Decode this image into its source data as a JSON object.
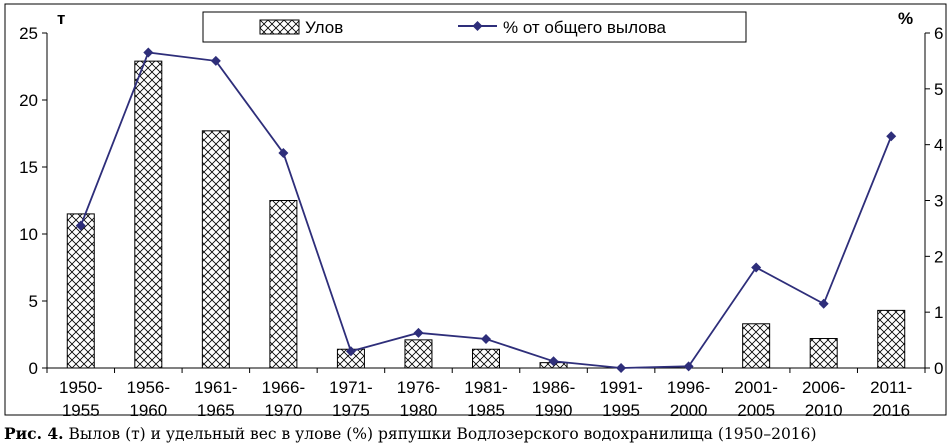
{
  "chart_data": {
    "type": "bar+line",
    "categories": [
      "1950-1955",
      "1956-1960",
      "1961-1965",
      "1966-1970",
      "1971-1975",
      "1976-1980",
      "1981-1985",
      "1986-1990",
      "1991-1995",
      "1996-2000",
      "2001-2005",
      "2006-2010",
      "2011-2016"
    ],
    "category_lines": [
      [
        "1950-",
        "1955"
      ],
      [
        "1956-",
        "1960"
      ],
      [
        "1961-",
        "1965"
      ],
      [
        "1966-",
        "1970"
      ],
      [
        "1971-",
        "1975"
      ],
      [
        "1976-",
        "1980"
      ],
      [
        "1981-",
        "1985"
      ],
      [
        "1986-",
        "1990"
      ],
      [
        "1991-",
        "1995"
      ],
      [
        "1996-",
        "2000"
      ],
      [
        "2001-",
        "2005"
      ],
      [
        "2006-",
        "2010"
      ],
      [
        "2011-",
        "2016"
      ]
    ],
    "series": [
      {
        "name": "Улов",
        "type": "bar",
        "axis": "left",
        "values": [
          11.5,
          22.9,
          17.7,
          12.5,
          1.4,
          2.1,
          1.4,
          0.4,
          0.0,
          0.0,
          3.3,
          2.2,
          4.3
        ]
      },
      {
        "name": "% от общего вылова",
        "type": "line",
        "axis": "right",
        "values": [
          2.55,
          5.65,
          5.5,
          3.85,
          0.3,
          0.63,
          0.52,
          0.12,
          0.0,
          0.03,
          1.8,
          1.15,
          4.15
        ]
      }
    ],
    "left_axis": {
      "unit": "т",
      "ylim": [
        0,
        25
      ],
      "ticks": [
        "0",
        "5",
        "10",
        "15",
        "20",
        "25"
      ]
    },
    "right_axis": {
      "unit": "%",
      "ylim": [
        0,
        6
      ],
      "ticks": [
        "0",
        "1",
        "2",
        "3",
        "4",
        "5",
        "6"
      ]
    },
    "legend_placement": "top-center",
    "grid": false
  },
  "caption": {
    "label": "Рис. 4.",
    "text": " Вылов (т) и удельный вес в улове (%) ряпушки Водлозерского водохранилища (1950–2016)"
  },
  "colors": {
    "line": "#2e2e7a",
    "bar_stroke": "#000000",
    "axis": "#000000"
  }
}
